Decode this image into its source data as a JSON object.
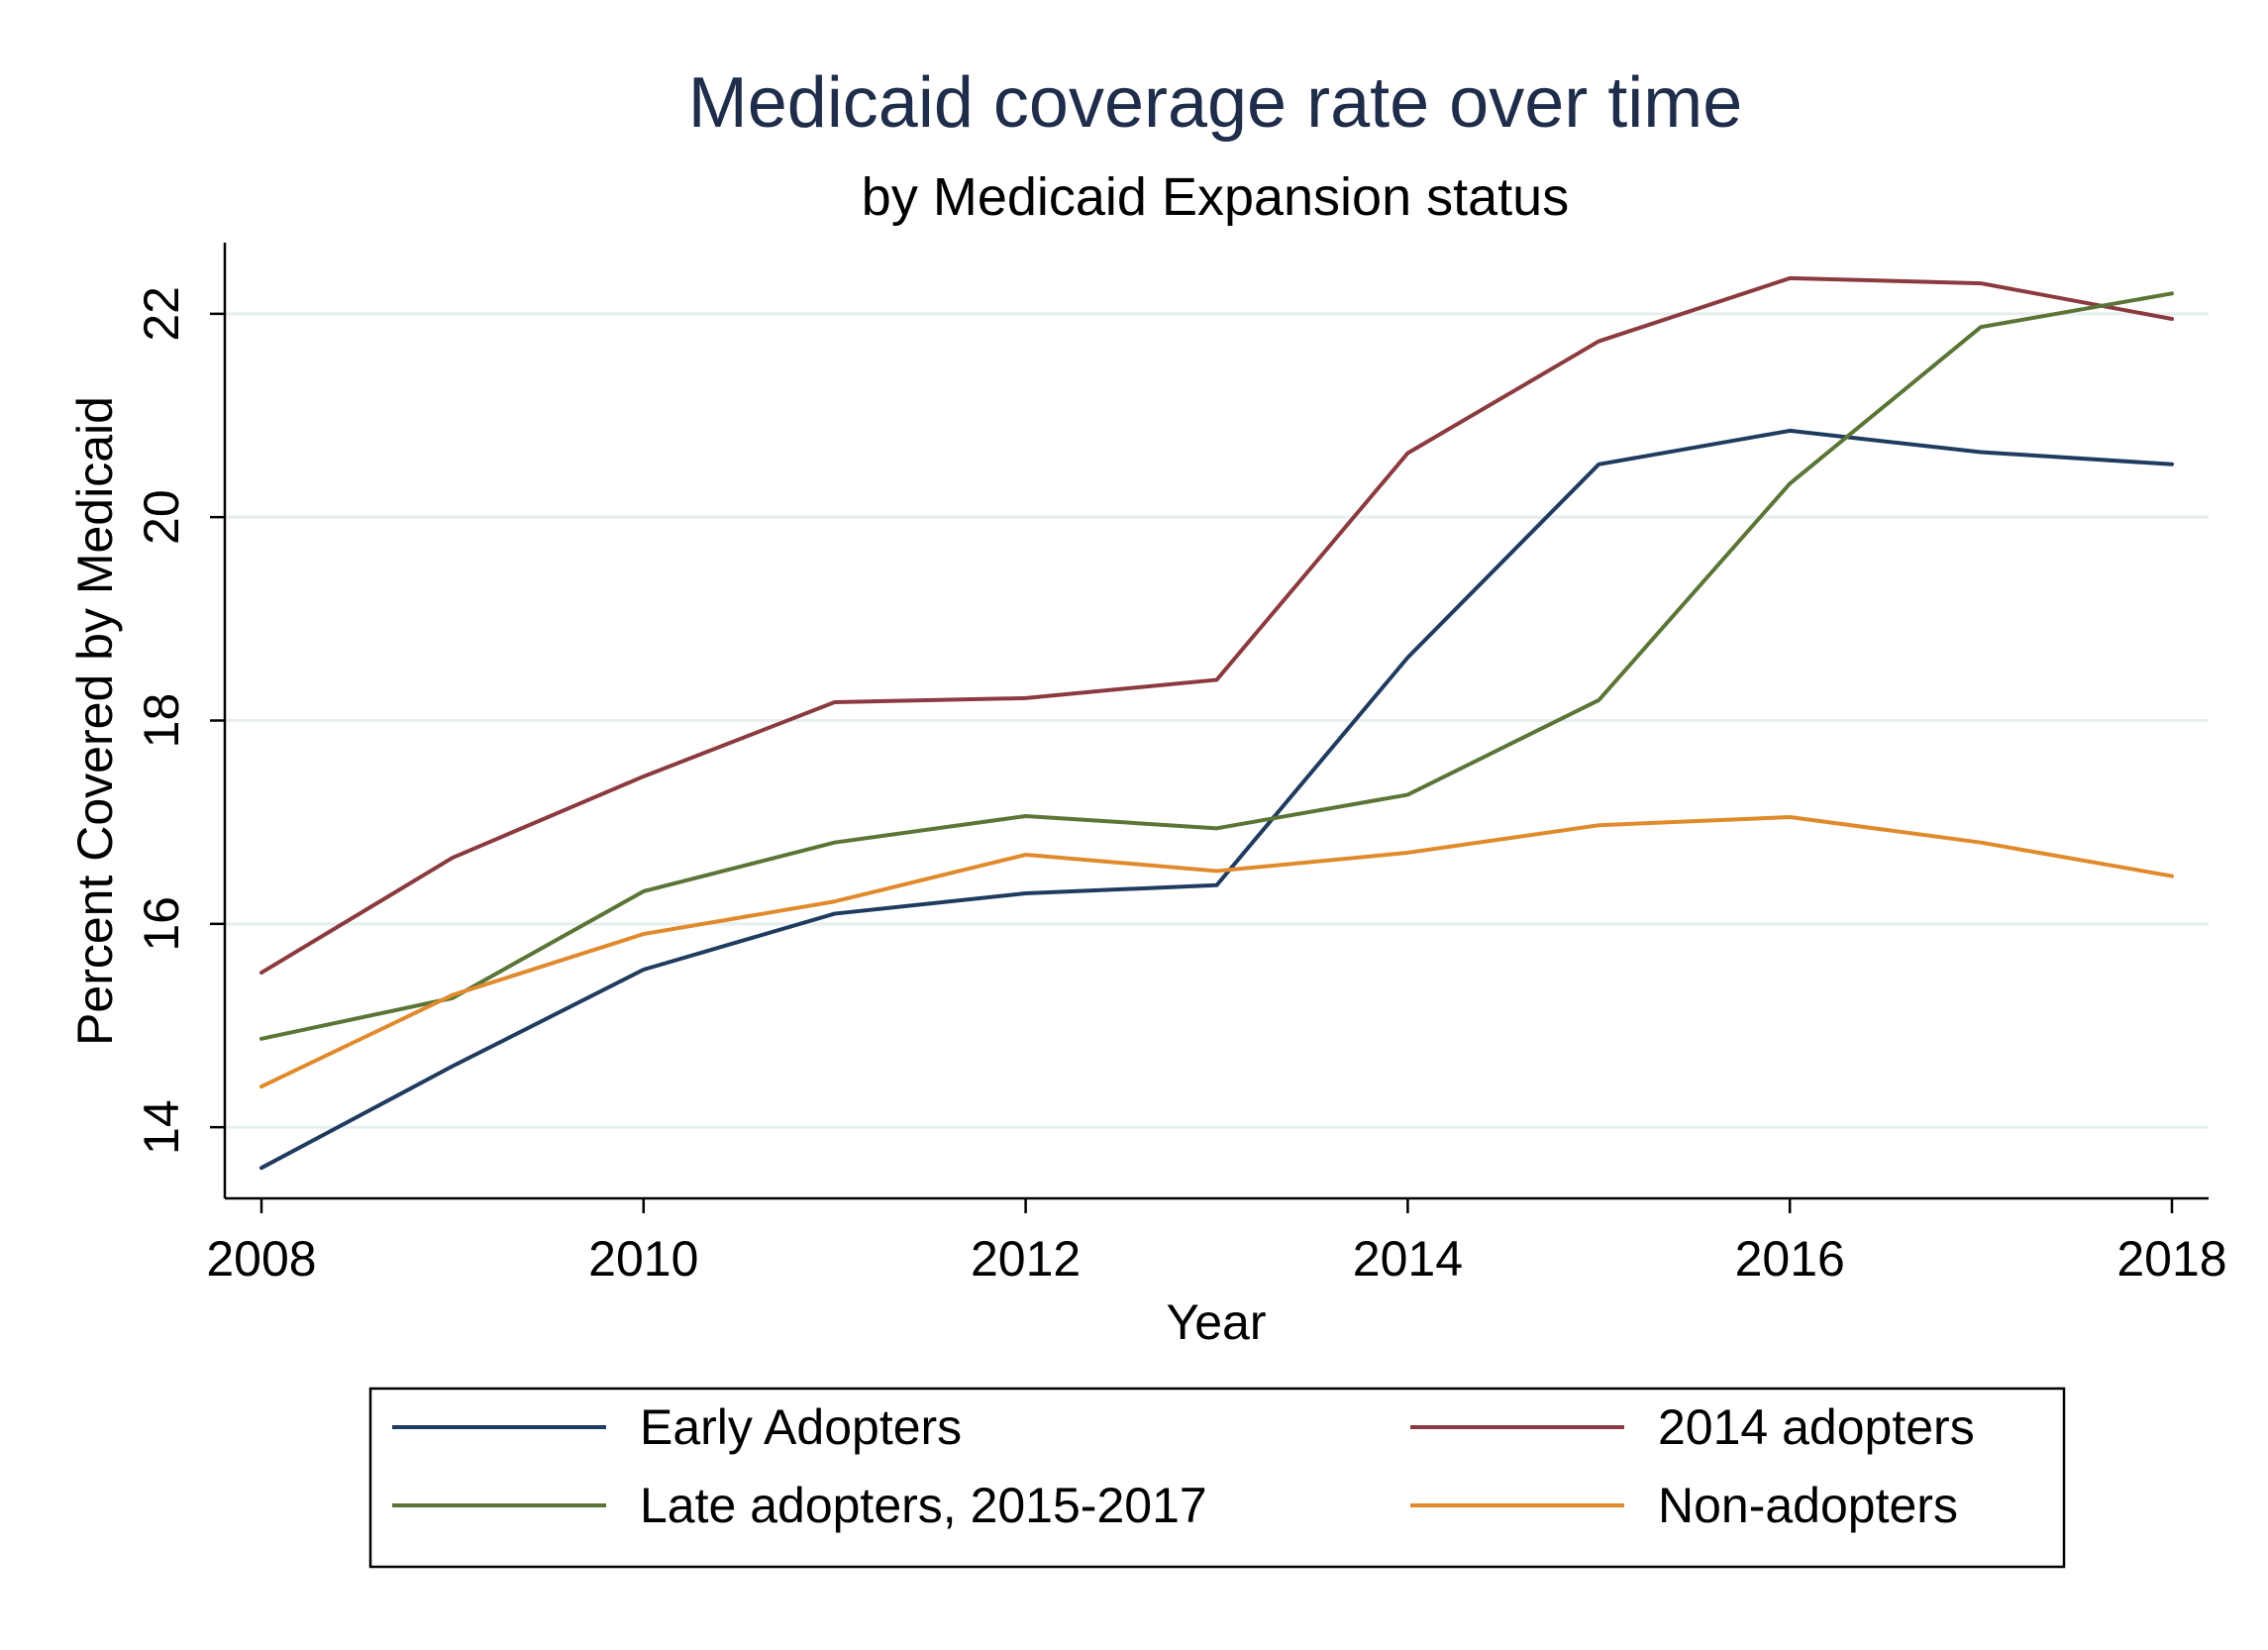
{
  "chart_data": {
    "type": "line",
    "title": "Medicaid coverage rate over time",
    "subtitle": "by Medicaid Expansion status",
    "xlabel": "Year",
    "ylabel": "Percent Covered by Medicaid",
    "x": [
      2008,
      2009,
      2010,
      2011,
      2012,
      2013,
      2014,
      2015,
      2016,
      2017,
      2018
    ],
    "xticks": [
      2008,
      2010,
      2012,
      2014,
      2016,
      2018
    ],
    "yticks": [
      14,
      16,
      18,
      20,
      22
    ],
    "xlim": [
      2008,
      2018
    ],
    "ylim": [
      13.3,
      22.7
    ],
    "grid": true,
    "legend_position": "bottom",
    "series": [
      {
        "name": "Early Adopters",
        "color": "#1f3b5f",
        "values": [
          13.6,
          14.6,
          15.55,
          16.1,
          16.3,
          16.38,
          18.62,
          20.52,
          20.85,
          20.64,
          20.52
        ]
      },
      {
        "name": "2014 adopters",
        "color": "#8b3a3f",
        "values": [
          15.52,
          16.65,
          17.45,
          18.18,
          18.22,
          18.4,
          20.63,
          21.73,
          22.35,
          22.3,
          21.95
        ]
      },
      {
        "name": "Late adopters, 2015-2017",
        "color": "#5a7536",
        "values": [
          14.87,
          15.27,
          16.32,
          16.8,
          17.06,
          16.94,
          17.27,
          18.2,
          20.33,
          21.87,
          22.2
        ]
      },
      {
        "name": "Non-adopters",
        "color": "#e08a2c",
        "values": [
          14.4,
          15.3,
          15.9,
          16.22,
          16.68,
          16.52,
          16.7,
          16.97,
          17.05,
          16.8,
          16.47
        ]
      }
    ]
  }
}
